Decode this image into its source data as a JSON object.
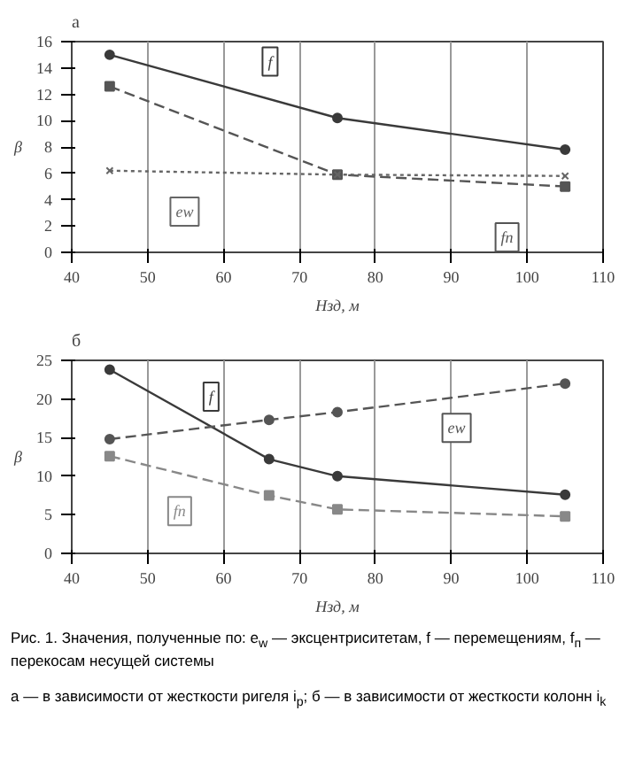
{
  "chart_data": [
    {
      "type": "line",
      "title": "а",
      "ylabel": "β",
      "xlabel": "Нзд, м",
      "xlim": [
        40,
        110
      ],
      "xticks": [
        40,
        50,
        60,
        70,
        80,
        90,
        100,
        110
      ],
      "ylim": [
        0,
        16
      ],
      "yticks": [
        0,
        2,
        4,
        6,
        8,
        10,
        12,
        14,
        16
      ],
      "grid": "x",
      "series": [
        {
          "name": "f",
          "color": "#3a3a3a",
          "x": [
            45,
            75,
            105
          ],
          "values": [
            15.0,
            10.2,
            7.8
          ],
          "marker": "circle",
          "line_style": "solid"
        },
        {
          "name": "fn",
          "color": "#555555",
          "x": [
            45,
            75,
            105
          ],
          "values": [
            12.6,
            5.9,
            5.0
          ],
          "marker": "square",
          "line_style": "dashed"
        },
        {
          "name": "ew",
          "color": "#666666",
          "x": [
            45,
            75,
            105
          ],
          "values": [
            6.2,
            5.9,
            5.8
          ],
          "marker": "cross",
          "line_style": "dotted"
        }
      ]
    },
    {
      "type": "line",
      "title": "б",
      "ylabel": "β",
      "xlabel": "Нзд, м",
      "xlim": [
        40,
        110
      ],
      "xticks": [
        40,
        50,
        60,
        70,
        80,
        90,
        100,
        110
      ],
      "ylim": [
        0,
        25
      ],
      "yticks": [
        0,
        5,
        10,
        15,
        20,
        25
      ],
      "grid": "x",
      "series": [
        {
          "name": "f",
          "color": "#3a3a3a",
          "x": [
            45,
            66,
            75,
            105
          ],
          "values": [
            23.8,
            12.2,
            10.0,
            7.6
          ],
          "marker": "circle",
          "line_style": "solid"
        },
        {
          "name": "ew",
          "color": "#555555",
          "x": [
            45,
            66,
            75,
            105
          ],
          "values": [
            14.8,
            17.3,
            18.3,
            22.0
          ],
          "marker": "circle",
          "line_style": "dashed"
        },
        {
          "name": "fn",
          "color": "#888888",
          "x": [
            45,
            66,
            75,
            105
          ],
          "values": [
            12.6,
            7.5,
            5.7,
            4.8
          ],
          "marker": "square",
          "line_style": "dashed"
        }
      ],
      "annotations": [
        "Рис. 1. Значения, полученные по: e$_{w}$ — эксцентриситетам, f — перемещениям, f$_{п}$ — перекосам несущей системы",
        "а — в зависимости от жесткости ригеля i$_{р}$; б — в зависимости от жесткости колонн i$_{k}$"
      ]
    }
  ]
}
